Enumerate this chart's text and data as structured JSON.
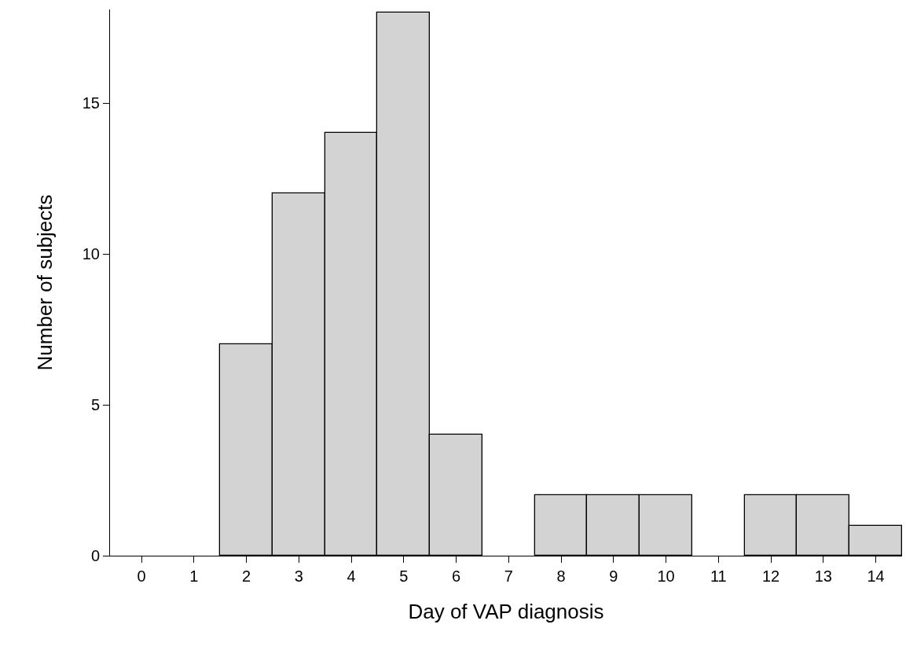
{
  "chart_data": {
    "type": "histogram",
    "xlabel": "Day of VAP diagnosis",
    "ylabel": "Number of subjects",
    "bins": [
      -0.5,
      0.5,
      1.5,
      2.5,
      3.5,
      4.5,
      5.5,
      6.5,
      7.5,
      8.5,
      9.5,
      10.5,
      11.5,
      12.5,
      13.5,
      14.5
    ],
    "values": [
      0,
      0,
      7,
      12,
      14,
      18,
      4,
      0,
      2,
      2,
      2,
      0,
      2,
      2,
      1
    ],
    "color": "#d3d3d3",
    "xlim": [
      -0.6,
      14.5
    ],
    "xticks": [
      0,
      1,
      2,
      3,
      4,
      5,
      6,
      7,
      8,
      9,
      10,
      11,
      12,
      13,
      14
    ],
    "ylim": [
      0,
      18.1
    ],
    "yticks": [
      0,
      5,
      10,
      15
    ],
    "grid": false
  }
}
